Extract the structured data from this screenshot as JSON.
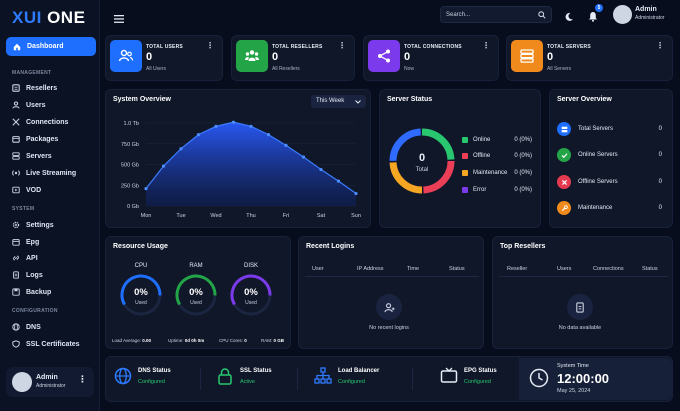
{
  "brand": {
    "name_a": "XUI",
    "name_b": "ONE"
  },
  "colors": {
    "accent": "#1f6fff",
    "success": "#28c76f",
    "danger": "#ea3f56",
    "warning": "#f5a623",
    "purple": "#7c3aed"
  },
  "sidebar": {
    "active": "Dashboard",
    "sections": [
      {
        "title": "MANAGEMENT",
        "items": [
          "Resellers",
          "Users",
          "Connections",
          "Packages",
          "Servers",
          "Live Streaming",
          "VOD"
        ]
      },
      {
        "title": "SYSTEM",
        "items": [
          "Settings",
          "Epg",
          "API",
          "Logs",
          "Backup"
        ]
      },
      {
        "title": "CONFIGURATION",
        "items": [
          "DNS",
          "SSL Certificates"
        ]
      }
    ],
    "user": {
      "name": "Admin",
      "role": "Administrator"
    }
  },
  "header": {
    "search_placeholder": "Search...",
    "notif_count": "5",
    "user": {
      "name": "Admin",
      "role": "Administrator"
    }
  },
  "stats": [
    {
      "title": "TOTAL USERS",
      "value": "0",
      "sub": "All Users",
      "color": "#1f6fff",
      "icon": "users-icon"
    },
    {
      "title": "TOTAL RESELLERS",
      "value": "0",
      "sub": "All Resellers",
      "color": "#22a447",
      "icon": "resellers-icon"
    },
    {
      "title": "TOTAL CONNECTIONS",
      "value": "0",
      "sub": "Now",
      "color": "#7c3aed",
      "icon": "share-icon"
    },
    {
      "title": "TOTAL SERVERS",
      "value": "0",
      "sub": "All Servers",
      "color": "#f08a1c",
      "icon": "server-icon"
    }
  ],
  "system_overview": {
    "title": "System Overview",
    "period": "This Week"
  },
  "chart_data": {
    "type": "area",
    "title": "System Overview",
    "categories": [
      "Mon",
      "Tue",
      "Wed",
      "Thu",
      "Fri",
      "Sat",
      "Sun"
    ],
    "y_tick_labels": [
      "0 Gb",
      "250 Gb",
      "500 Gb",
      "750 Gb",
      "1.0 Tb"
    ],
    "ylim": [
      0,
      1000
    ],
    "x": [
      0,
      0.5,
      1,
      1.5,
      2,
      2.5,
      3,
      3.5,
      4,
      4.5,
      5,
      5.5,
      6
    ],
    "values": [
      210,
      480,
      690,
      860,
      960,
      1010,
      960,
      860,
      730,
      590,
      440,
      300,
      150
    ]
  },
  "server_status": {
    "title": "Server Status",
    "center_value": "0",
    "center_label": "Total",
    "items": [
      {
        "label": "Online",
        "value": "0 (0%)",
        "color": "#28c76f"
      },
      {
        "label": "Offline",
        "value": "0 (0%)",
        "color": "#ea3f56"
      },
      {
        "label": "Maintenance",
        "value": "0 (0%)",
        "color": "#f5a623"
      },
      {
        "label": "Error",
        "value": "0 (0%)",
        "color": "#7c3aed"
      }
    ]
  },
  "server_overview": {
    "title": "Server Overview",
    "items": [
      {
        "label": "Total Servers",
        "value": "0",
        "color": "#1f6fff"
      },
      {
        "label": "Online Servers",
        "value": "0",
        "color": "#22a447"
      },
      {
        "label": "Offline Servers",
        "value": "0",
        "color": "#e53950"
      },
      {
        "label": "Maintenance",
        "value": "0",
        "color": "#f08a1c"
      }
    ]
  },
  "resource_usage": {
    "title": "Resource Usage",
    "gauges": [
      {
        "label": "CPU",
        "value": "0%",
        "sub": "Used",
        "color": "#1f6fff"
      },
      {
        "label": "RAM",
        "value": "0%",
        "sub": "Used",
        "color": "#22a447"
      },
      {
        "label": "DISK",
        "value": "0%",
        "sub": "Used",
        "color": "#7c3aed"
      }
    ],
    "footer": [
      {
        "label": "Load Average:",
        "value": "0.00"
      },
      {
        "label": "Uptime:",
        "value": "0d 0h 0m"
      },
      {
        "label": "CPU Cores:",
        "value": "0"
      },
      {
        "label": "RAM:",
        "value": "0 GB"
      }
    ]
  },
  "recent_logins": {
    "title": "Recent Logins",
    "columns": [
      "User",
      "IP Address",
      "Time",
      "Status"
    ],
    "empty": "No recent logins"
  },
  "top_resellers": {
    "title": "Top Resellers",
    "columns": [
      "Reseller",
      "Users",
      "Connections",
      "Status"
    ],
    "empty": "No data available"
  },
  "statusbar": [
    {
      "title": "DNS Status",
      "value": "Configured",
      "icon": "globe-icon"
    },
    {
      "title": "SSL Status",
      "value": "Active",
      "icon": "lock-icon"
    },
    {
      "title": "Load Balancer",
      "value": "Configured",
      "icon": "network-icon"
    },
    {
      "title": "EPG Status",
      "value": "Configured",
      "icon": "tv-icon"
    }
  ],
  "system_time": {
    "label": "System Time",
    "time": "12:00:00",
    "date": "May 25, 2024"
  }
}
